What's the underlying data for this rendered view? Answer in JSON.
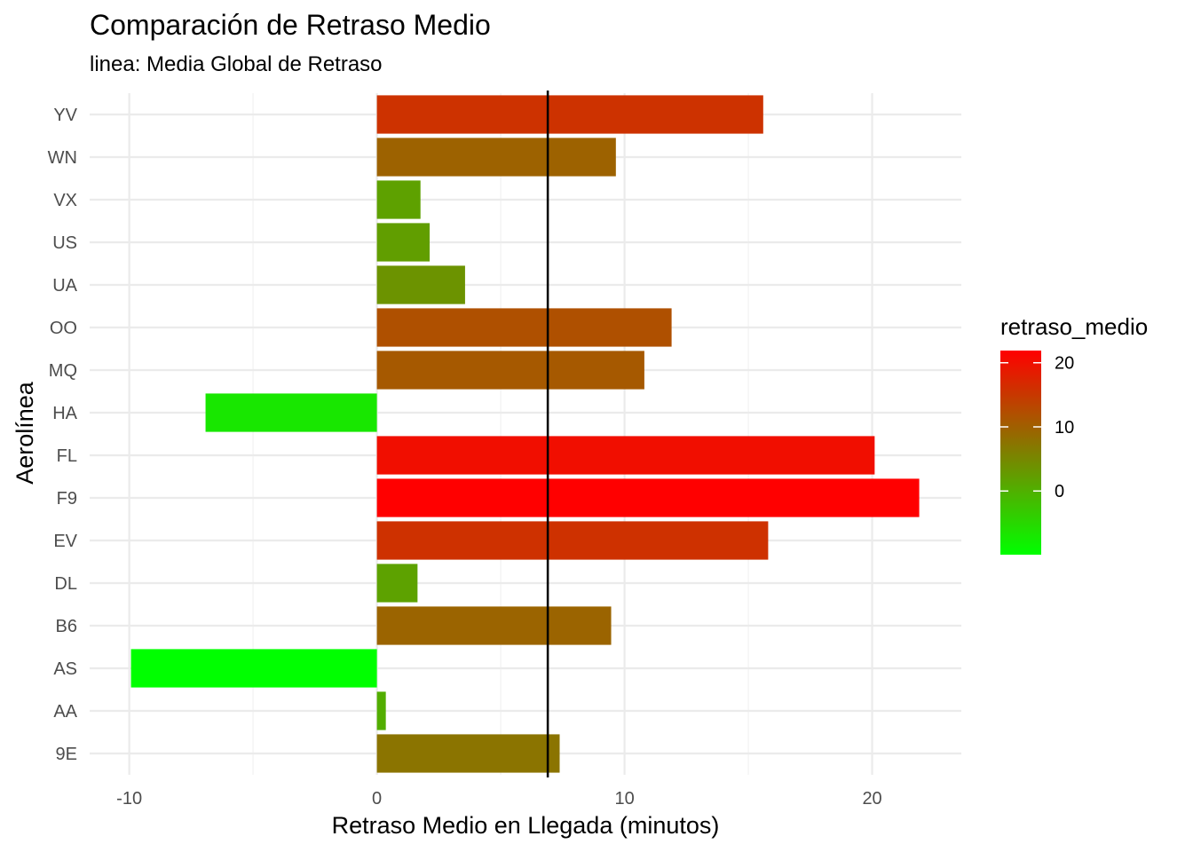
{
  "chart_data": {
    "type": "bar",
    "orientation": "horizontal",
    "title": "Comparación de Retraso Medio",
    "subtitle": "linea: Media Global de Retraso",
    "xlabel": "Retraso Medio en Llegada (minutos)",
    "ylabel": "Aerolínea",
    "categories": [
      "9E",
      "AA",
      "AS",
      "B6",
      "DL",
      "EV",
      "F9",
      "FL",
      "HA",
      "MQ",
      "OO",
      "UA",
      "US",
      "VX",
      "WN",
      "YV"
    ],
    "values": [
      7.38,
      0.36,
      -9.93,
      9.46,
      1.64,
      15.8,
      21.9,
      20.1,
      -6.92,
      10.8,
      11.9,
      3.56,
      2.13,
      1.76,
      9.65,
      15.6
    ],
    "xlim": [
      -11.6,
      23.6
    ],
    "xticks": [
      -10,
      0,
      10,
      20
    ],
    "xtick_labels": [
      "-10",
      "0",
      "10",
      "20"
    ],
    "reference_line": {
      "x": 6.9
    },
    "grid": true,
    "legend": {
      "title": "retraso_medio",
      "position": "right",
      "range": [
        -9.93,
        21.9
      ],
      "ticks": [
        0,
        10,
        20
      ],
      "tick_labels": [
        "0",
        "10",
        "20"
      ],
      "color_low": "#00FF00",
      "color_high": "#FF0000"
    }
  }
}
